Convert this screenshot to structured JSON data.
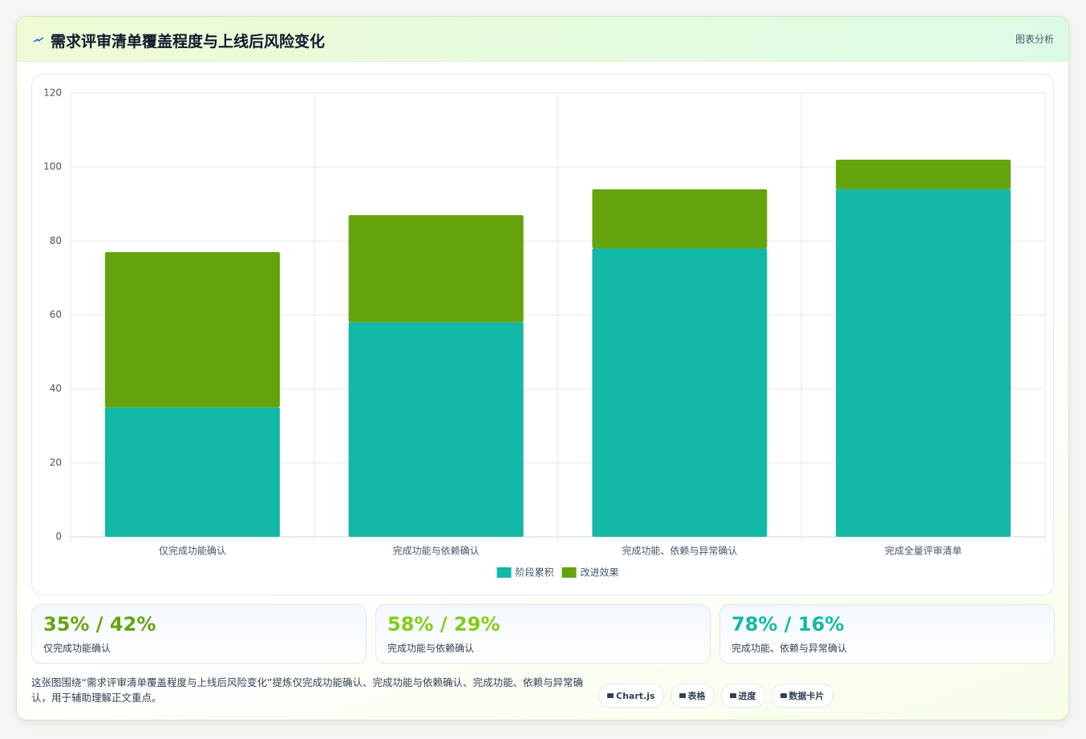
{
  "header": {
    "title": "需求评审清单覆盖程度与上线后风险变化",
    "action": "图表分析"
  },
  "chart_data": {
    "type": "bar",
    "stacked": true,
    "categories": [
      "仅完成功能确认",
      "完成功能与依赖确认",
      "完成功能、依赖与异常确认",
      "完成全量评审清单"
    ],
    "series": [
      {
        "name": "阶段累积",
        "color": "#14b8a6",
        "values": [
          35,
          58,
          78,
          94
        ]
      },
      {
        "name": "改进效果",
        "color": "#65a30d",
        "values": [
          42,
          29,
          16,
          8
        ]
      }
    ],
    "ylim": [
      0,
      120
    ],
    "yticks": [
      0,
      20,
      40,
      60,
      80,
      100,
      120
    ],
    "grid": true,
    "legend": "bottom"
  },
  "cards": [
    {
      "value": "35% / 42%",
      "label": "仅完成功能确认",
      "color": "#65a30d"
    },
    {
      "value": "58% / 29%",
      "label": "完成功能与依赖确认",
      "color": "#84cc16"
    },
    {
      "value": "78% / 16%",
      "label": "完成功能、依赖与异常确认",
      "color": "#14b8a6"
    }
  ],
  "description": "这张图围绕“需求评审清单覆盖程度与上线后风险变化”提炼仅完成功能确认、完成功能与依赖确认、完成功能、依赖与异常确认，用于辅助理解正文重点。",
  "chips": [
    "Chart.js",
    "表格",
    "进度",
    "数据卡片"
  ]
}
